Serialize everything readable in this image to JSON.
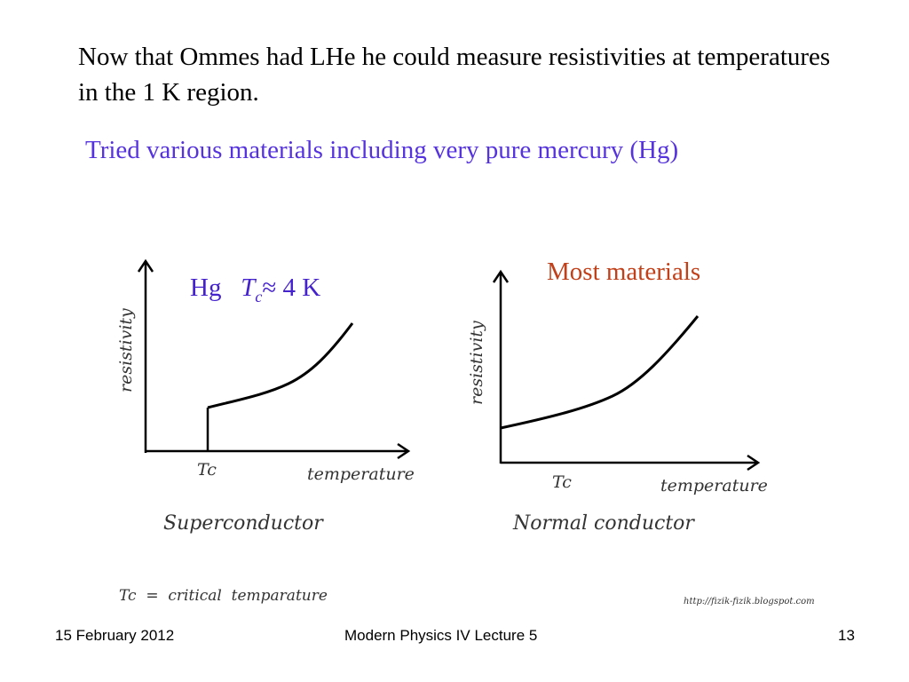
{
  "slide": {
    "body_text": "Now that Ommes had LHe he could measure resistivities at temperatures in the 1 K region.",
    "subtext": "Tried various materials including very pure mercury (Hg)",
    "hg_label": {
      "element": "Hg",
      "symbol": "T",
      "subscript": "c",
      "relation": "≈ 4 K"
    },
    "most_materials": "Most materials"
  },
  "figures": {
    "superconductor": {
      "ylabel": "resistivity",
      "xlabel": "temperature",
      "tick": "Tc",
      "caption": "Superconductor"
    },
    "normal": {
      "ylabel": "resistivity",
      "xlabel": "temperature",
      "tick": "Tc",
      "caption": "Normal conductor"
    },
    "definition": "Tc  =  critical  temparature",
    "credit": "http://fizik-fizik.blogspot.com"
  },
  "footer": {
    "date": "15 February 2012",
    "title": "Modern Physics IV Lecture 5",
    "page": "13"
  }
}
